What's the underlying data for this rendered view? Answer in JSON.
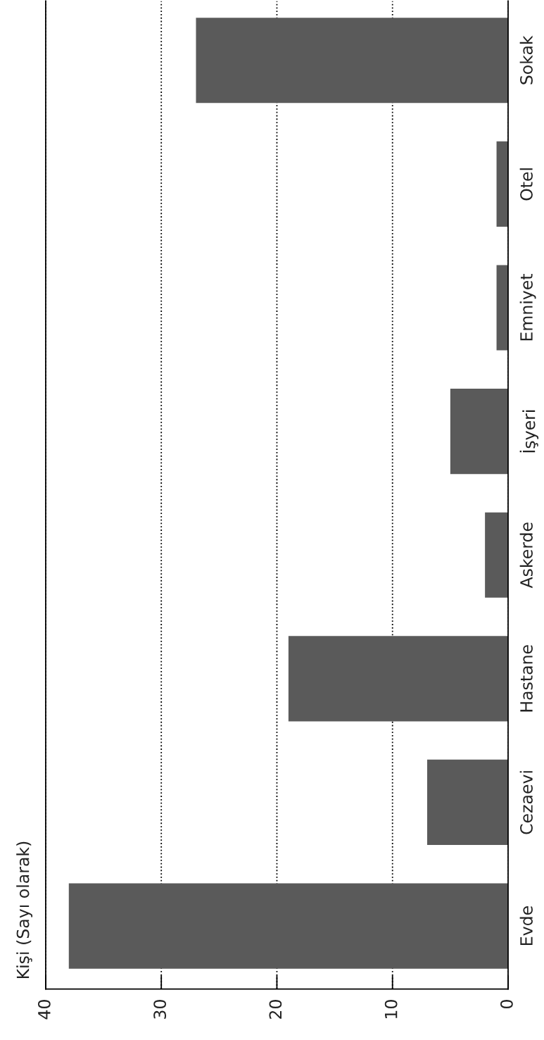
{
  "chart_data": {
    "type": "bar",
    "orientation": "horizontal",
    "title": "Kişi (Sayı olarak)",
    "categories": [
      "Sokak",
      "Otel",
      "Emniyet",
      "İşyeri",
      "Askerde",
      "Hastane",
      "Cezaevi",
      "Evde"
    ],
    "values": [
      27,
      1,
      1,
      5,
      2,
      19,
      7,
      38
    ],
    "color": "#5a5a5a",
    "xlim": [
      40,
      0
    ],
    "xticks": [
      40,
      30,
      20,
      10,
      0
    ],
    "grid": "x",
    "line_style": "dotted"
  }
}
